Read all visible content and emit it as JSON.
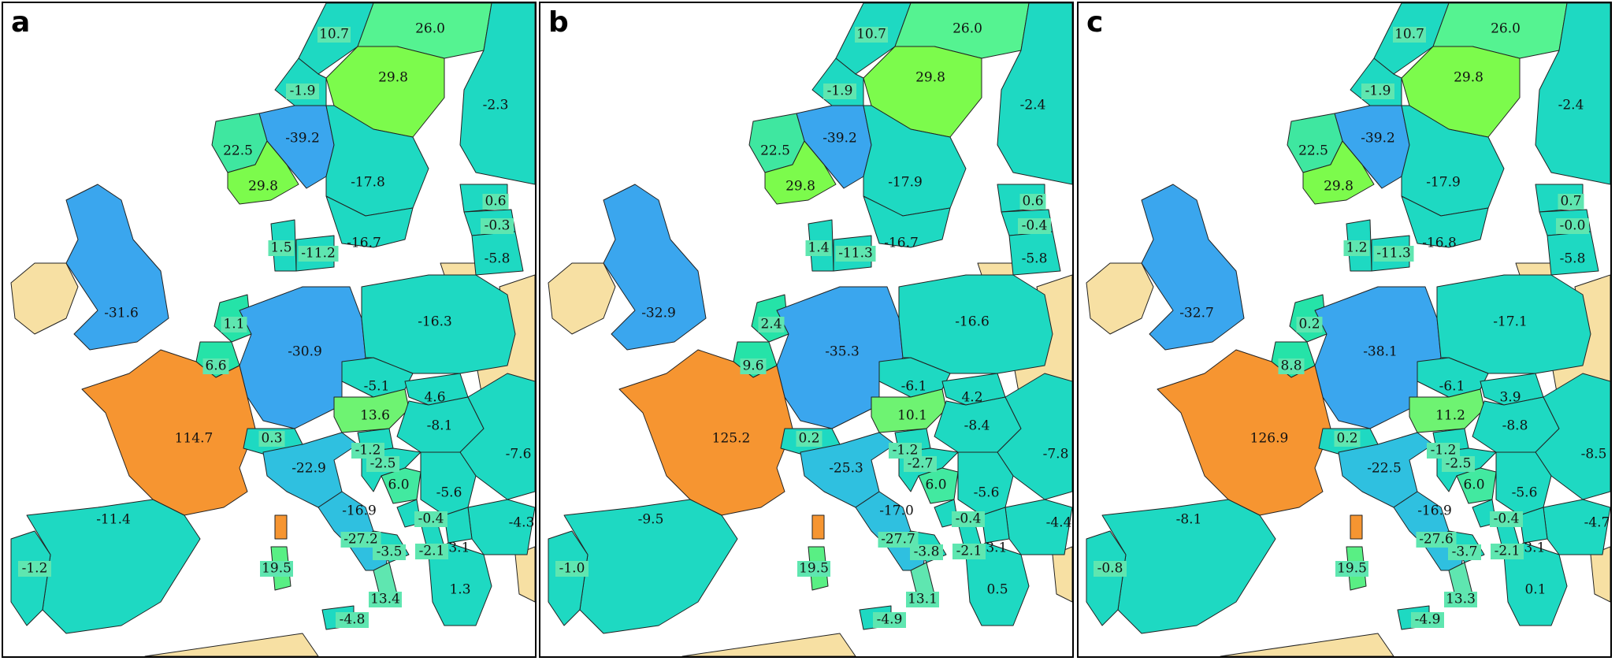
{
  "colors": {
    "sea": "#ffffff",
    "outside": "#f7e0a3",
    "label_highlight": "#5fe6b0"
  },
  "panels": [
    {
      "letter": "a",
      "values": {
        "n_norway_north": "10.7",
        "n_sweden_north": "26.0",
        "n_sweden_mid": "29.8",
        "n_finland": "-2.3",
        "n_norway_mid": "-1.9",
        "n_norway_east": "-39.2",
        "n_norway_west": "22.5",
        "n_norway_south": "29.8",
        "n_sweden_south": "-17.8",
        "n_estonia": "0.6",
        "n_latvia": "-0.3",
        "n_lithuania": "-5.8",
        "n_sweden_se": "-16.7",
        "n_denmark_w": "1.5",
        "n_denmark_e": "-11.2",
        "uk": "-31.6",
        "netherlands": "1.1",
        "belgium": "6.6",
        "germany": "-30.9",
        "poland": "-16.3",
        "czechia": "-5.1",
        "slovakia": "4.6",
        "austria": "13.6",
        "hungary": "-8.1",
        "romania": "-7.6",
        "france": "114.7",
        "switzerland": "0.3",
        "italy_north": "-22.9",
        "slovenia": "-1.2",
        "croatia": "-2.5",
        "bosnia": "6.0",
        "serbia": "-5.6",
        "bulgaria": "-4.3",
        "montenegro": "-0.4",
        "albania": "-3.1",
        "macedonia": "-2.1",
        "italy_central": "-16.9",
        "italy_south": "-27.2",
        "italy_se": "-3.5",
        "spain": "-11.4",
        "portugal": "-1.2",
        "sardinia": "19.5",
        "sicily": "-4.8",
        "calabria": "13.4",
        "greece": "1.3"
      }
    },
    {
      "letter": "b",
      "values": {
        "n_norway_north": "10.7",
        "n_sweden_north": "26.0",
        "n_sweden_mid": "29.8",
        "n_finland": "-2.4",
        "n_norway_mid": "-1.9",
        "n_norway_east": "-39.2",
        "n_norway_west": "22.5",
        "n_norway_south": "29.8",
        "n_sweden_south": "-17.9",
        "n_estonia": "0.6",
        "n_latvia": "-0.4",
        "n_lithuania": "-5.8",
        "n_sweden_se": "-16.7",
        "n_denmark_w": "1.4",
        "n_denmark_e": "-11.3",
        "uk": "-32.9",
        "netherlands": "2.4",
        "belgium": "9.6",
        "germany": "-35.3",
        "poland": "-16.6",
        "czechia": "-6.1",
        "slovakia": "4.2",
        "austria": "10.1",
        "hungary": "-8.4",
        "romania": "-7.8",
        "france": "125.2",
        "switzerland": "0.2",
        "italy_north": "-25.3",
        "slovenia": "-1.2",
        "croatia": "-2.7",
        "bosnia": "6.0",
        "serbia": "-5.6",
        "bulgaria": "-4.4",
        "montenegro": "-0.4",
        "albania": "-3.1",
        "macedonia": "-2.1",
        "italy_central": "-17.0",
        "italy_south": "-27.7",
        "italy_se": "-3.8",
        "spain": "-9.5",
        "portugal": "-1.0",
        "sardinia": "19.5",
        "sicily": "-4.9",
        "calabria": "13.1",
        "greece": "0.5"
      }
    },
    {
      "letter": "c",
      "values": {
        "n_norway_north": "10.7",
        "n_sweden_north": "26.0",
        "n_sweden_mid": "29.8",
        "n_finland": "-2.4",
        "n_norway_mid": "-1.9",
        "n_norway_east": "-39.2",
        "n_norway_west": "22.5",
        "n_norway_south": "29.8",
        "n_sweden_south": "-17.9",
        "n_estonia": "0.7",
        "n_latvia": "-0.0",
        "n_lithuania": "-5.8",
        "n_sweden_se": "-16.8",
        "n_denmark_w": "1.2",
        "n_denmark_e": "-11.3",
        "uk": "-32.7",
        "netherlands": "0.2",
        "belgium": "8.8",
        "germany": "-38.1",
        "poland": "-17.1",
        "czechia": "-6.1",
        "slovakia": "3.9",
        "austria": "11.2",
        "hungary": "-8.8",
        "romania": "-8.5",
        "france": "126.9",
        "switzerland": "0.2",
        "italy_north": "-22.5",
        "slovenia": "-1.2",
        "croatia": "-2.5",
        "bosnia": "6.0",
        "serbia": "-5.6",
        "bulgaria": "-4.7",
        "montenegro": "-0.4",
        "albania": "-3.1",
        "macedonia": "-2.1",
        "italy_central": "-16.9",
        "italy_south": "-27.6",
        "italy_se": "-3.7",
        "spain": "-8.1",
        "portugal": "-0.8",
        "sardinia": "19.5",
        "sicily": "-4.9",
        "calabria": "13.3",
        "greece": "0.1"
      }
    }
  ]
}
